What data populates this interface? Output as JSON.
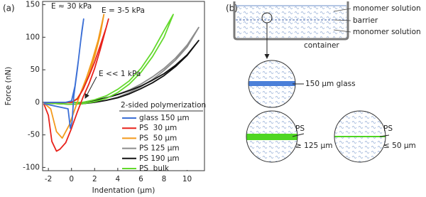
{
  "chart_data": {
    "type": "line",
    "panel_label": "(a)",
    "x_label": "Indentation (μm)",
    "y_label": "Force (nN)",
    "xlim": [
      -2.5,
      11.5
    ],
    "ylim": [
      -105,
      155
    ],
    "xticks": [
      -2,
      0,
      2,
      4,
      6,
      8,
      10
    ],
    "yticks": [
      -100,
      -50,
      0,
      50,
      100,
      150
    ],
    "legend_title": "2-sided polymerization",
    "legend_position": "lower right",
    "annotations": [
      "E ≈ 30 kPa",
      "E = 3-5 kPa",
      "E << 1 kPa"
    ],
    "series": [
      {
        "name": "glass 150 μm",
        "color": "#3b6fd6",
        "x": [
          -2.4,
          -0.5,
          0,
          0.3,
          0.6,
          0.9,
          1.05,
          0.8,
          0.5,
          0.2,
          0.05,
          -0.1,
          -0.3,
          -2.4
        ],
        "values": [
          0,
          0,
          2,
          25,
          65,
          110,
          128,
          95,
          50,
          10,
          -30,
          -40,
          -10,
          -2
        ]
      },
      {
        "name": "PS  30 μm",
        "color": "#e8221b",
        "x": [
          -2.4,
          0,
          0.5,
          1,
          1.5,
          2,
          2.5,
          3,
          3.2,
          2.5,
          2,
          1.5,
          1,
          0.5,
          0,
          -0.5,
          -1,
          -1.3,
          -1.7,
          -2,
          -2.4
        ],
        "values": [
          0,
          0,
          5,
          20,
          40,
          62,
          88,
          115,
          128,
          82,
          52,
          28,
          8,
          -15,
          -40,
          -62,
          -72,
          -75,
          -60,
          -20,
          -2
        ]
      },
      {
        "name": "PS  50 μm",
        "color": "#f39a1c",
        "x": [
          -2.4,
          0,
          0.5,
          1,
          1.5,
          2,
          2.5,
          2.8,
          2.3,
          1.8,
          1.3,
          0.8,
          0.3,
          -0.2,
          -0.8,
          -1.3,
          -1.8,
          -2.4
        ],
        "values": [
          0,
          0,
          6,
          20,
          42,
          70,
          105,
          135,
          95,
          65,
          38,
          15,
          -10,
          -35,
          -55,
          -45,
          -10,
          -1
        ]
      },
      {
        "name": "PS 125 μm",
        "color": "#8c8c8c",
        "x": [
          -2.4,
          1,
          2,
          3,
          4,
          5,
          6,
          7,
          8,
          9,
          10,
          11,
          10,
          9,
          8,
          7,
          6,
          5,
          4,
          3,
          2,
          1,
          0,
          -2.4
        ],
        "values": [
          0,
          0,
          3,
          7,
          12,
          19,
          28,
          39,
          52,
          68,
          88,
          115,
          85,
          65,
          49,
          35,
          24,
          15,
          8,
          3,
          0,
          -2,
          -3,
          -1
        ]
      },
      {
        "name": "PS 190 μm",
        "color": "#111111",
        "x": [
          -2.4,
          1,
          2,
          3,
          4,
          5,
          6,
          7,
          8,
          9,
          10,
          11,
          10,
          9,
          8,
          7,
          6,
          5,
          4,
          3,
          2,
          1,
          0,
          -2.4
        ],
        "values": [
          0,
          0,
          3,
          7,
          12,
          18,
          25,
          34,
          44,
          57,
          73,
          95,
          72,
          55,
          41,
          30,
          21,
          13,
          7,
          3,
          0,
          -2,
          -3,
          -1
        ]
      },
      {
        "name": "PS  bulk",
        "color": "#63d92c",
        "x": [
          -2.4,
          1,
          2,
          3,
          4,
          5,
          6,
          7,
          8,
          8.8,
          8,
          7,
          6,
          5,
          4,
          3,
          2,
          1,
          0,
          -2.4
        ],
        "values": [
          0,
          0,
          4,
          10,
          20,
          33,
          52,
          78,
          110,
          135,
          100,
          70,
          46,
          28,
          15,
          6,
          1,
          -2,
          -3,
          -1
        ]
      }
    ]
  },
  "diagram": {
    "panel_label": "(b)",
    "top_label": "monomer solution",
    "barrier_label": "barrier",
    "bottom_label": "monomer solution",
    "container_label": "container",
    "glass_label": "150 μm glass",
    "thick_label": "PS",
    "thick_size": "≥ 125 μm",
    "thin_label": "PS",
    "thin_size": "≤ 50 μm"
  }
}
